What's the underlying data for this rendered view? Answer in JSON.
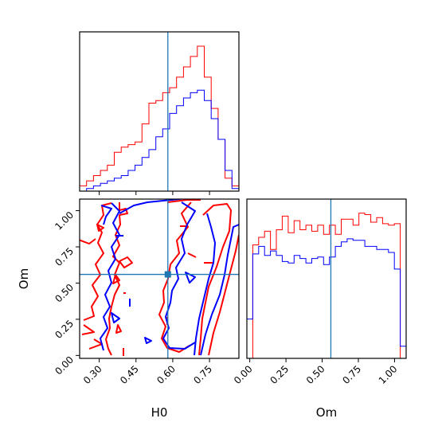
{
  "colors": {
    "series_red": "#ff0000",
    "series_blue": "#0000ff",
    "truth": "#1f77b4",
    "axes": "#000000",
    "background": "#ffffff"
  },
  "chart_data": {
    "type": "corner",
    "parameters": [
      "H0",
      "Om"
    ],
    "xlabels": {
      "h0": "H0",
      "om": "Om"
    },
    "ylabel": "Om",
    "ranges": {
      "h0": [
        0.22,
        0.87
      ],
      "om": [
        -0.02,
        1.08
      ]
    },
    "h0_ticks": [
      "0.30",
      "0.45",
      "0.60",
      "0.75"
    ],
    "om_ticks": [
      "0.00",
      "0.25",
      "0.50",
      "0.75",
      "1.00"
    ],
    "truth": {
      "h0": 0.58,
      "om": 0.56
    },
    "series": [
      {
        "color": "red",
        "h0_hist": [
          0.036,
          0.071,
          0.107,
          0.143,
          0.179,
          0.268,
          0.304,
          0.321,
          0.339,
          0.464,
          0.607,
          0.625,
          0.679,
          0.714,
          0.786,
          0.857,
          0.929,
          1.0,
          0.786,
          0.571,
          0.357,
          0.089,
          0.036
        ],
        "om_hist": [
          0.0,
          0.75,
          0.8,
          0.84,
          0.72,
          0.85,
          0.94,
          0.83,
          0.91,
          0.85,
          0.88,
          0.84,
          0.88,
          0.82,
          0.88,
          0.82,
          0.92,
          0.92,
          0.88,
          0.96,
          0.95,
          0.9,
          0.93,
          0.89,
          0.88,
          0.89,
          0.0
        ]
      },
      {
        "color": "blue",
        "h0_hist": [
          0.0,
          0.018,
          0.036,
          0.054,
          0.071,
          0.089,
          0.107,
          0.143,
          0.179,
          0.232,
          0.286,
          0.375,
          0.429,
          0.536,
          0.589,
          0.643,
          0.679,
          0.696,
          0.625,
          0.5,
          0.357,
          0.143,
          0.018
        ],
        "om_hist": [
          0.26,
          0.69,
          0.74,
          0.68,
          0.71,
          0.68,
          0.64,
          0.63,
          0.68,
          0.66,
          0.63,
          0.66,
          0.67,
          0.62,
          0.67,
          0.74,
          0.77,
          0.79,
          0.78,
          0.78,
          0.74,
          0.74,
          0.72,
          0.72,
          0.7,
          0.59,
          0.08
        ]
      }
    ]
  }
}
